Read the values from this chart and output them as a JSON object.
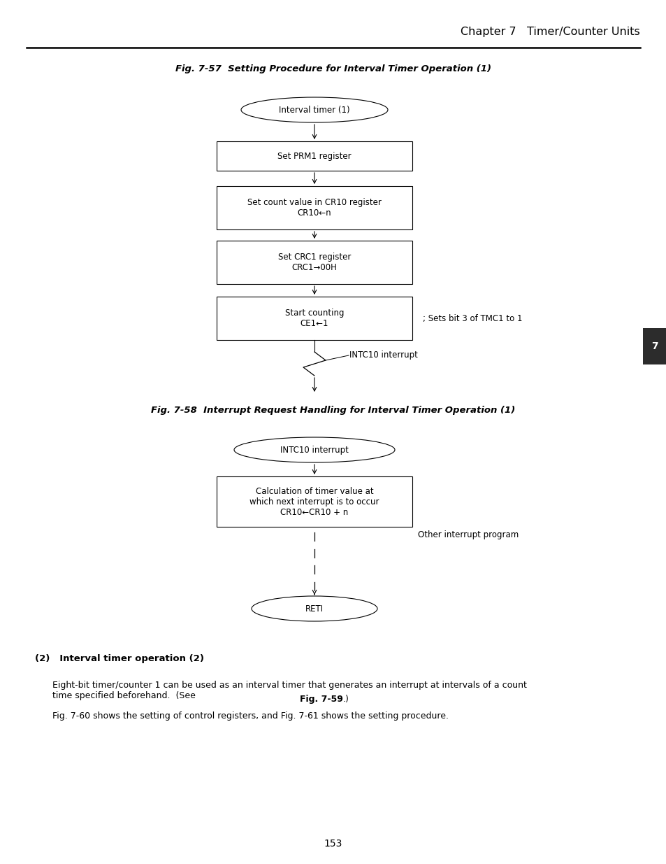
{
  "page_title": "Chapter 7   Timer/Counter Units",
  "page_number": "153",
  "fig57_title": "Fig. 7-57  Setting Procedure for Interval Timer Operation (1)",
  "fig58_title": "Fig. 7-58  Interrupt Request Handling for Interval Timer Operation (1)",
  "section_label": "(2)   Interval timer operation (2)",
  "section_text_pre": "Eight-bit timer/counter 1 can be used as an interval timer that generates an interrupt at intervals of a count\ntime specified beforehand.  (See ",
  "section_text_bold": "Fig. 7-59",
  "section_text_post": ".)",
  "section_text2": "Fig. 7-60 shows the setting of control registers, and Fig. 7-61 shows the setting procedure.",
  "bg_color": "#ffffff",
  "tab_color": "#2c2c2c",
  "fig57_comment": "; Sets bit 3 of TMC1 to 1",
  "fig57_intc_label": "INTC10 interrupt",
  "fig58_other_label": "Other interrupt program"
}
